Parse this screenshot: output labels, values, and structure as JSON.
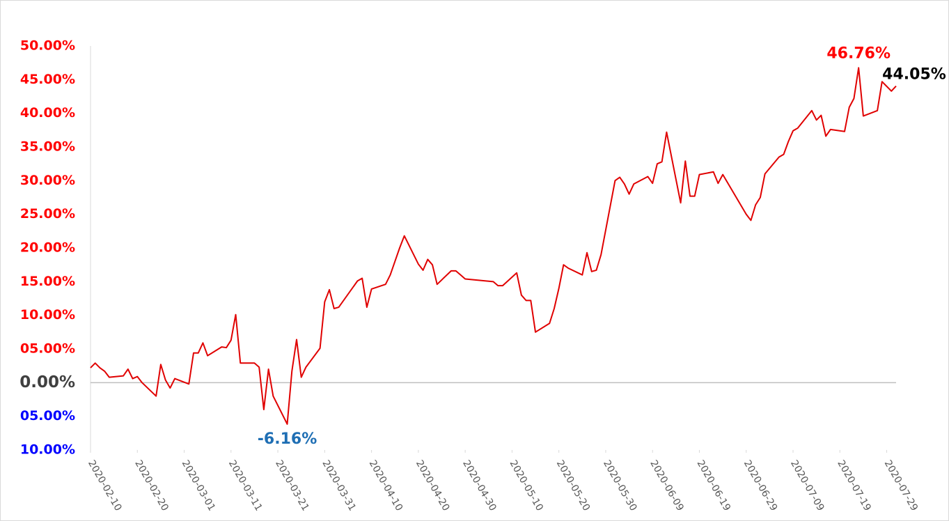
{
  "chart_data": {
    "type": "line",
    "x": [
      "2020-02-10",
      "2020-02-11",
      "2020-02-12",
      "2020-02-13",
      "2020-02-14",
      "2020-02-17",
      "2020-02-18",
      "2020-02-19",
      "2020-02-20",
      "2020-02-21",
      "2020-02-24",
      "2020-02-25",
      "2020-02-26",
      "2020-02-27",
      "2020-02-28",
      "2020-03-02",
      "2020-03-03",
      "2020-03-04",
      "2020-03-05",
      "2020-03-06",
      "2020-03-09",
      "2020-03-10",
      "2020-03-11",
      "2020-03-12",
      "2020-03-13",
      "2020-03-16",
      "2020-03-17",
      "2020-03-18",
      "2020-03-19",
      "2020-03-20",
      "2020-03-23",
      "2020-03-24",
      "2020-03-25",
      "2020-03-26",
      "2020-03-27",
      "2020-03-30",
      "2020-03-31",
      "2020-04-01",
      "2020-04-02",
      "2020-04-03",
      "2020-04-07",
      "2020-04-08",
      "2020-04-09",
      "2020-04-10",
      "2020-04-13",
      "2020-04-14",
      "2020-04-15",
      "2020-04-16",
      "2020-04-17",
      "2020-04-20",
      "2020-04-21",
      "2020-04-22",
      "2020-04-23",
      "2020-04-24",
      "2020-04-27",
      "2020-04-28",
      "2020-04-29",
      "2020-04-30",
      "2020-05-06",
      "2020-05-07",
      "2020-05-08",
      "2020-05-11",
      "2020-05-12",
      "2020-05-13",
      "2020-05-14",
      "2020-05-15",
      "2020-05-18",
      "2020-05-19",
      "2020-05-20",
      "2020-05-21",
      "2020-05-22",
      "2020-05-25",
      "2020-05-26",
      "2020-05-27",
      "2020-05-28",
      "2020-05-29",
      "2020-06-01",
      "2020-06-02",
      "2020-06-03",
      "2020-06-04",
      "2020-06-05",
      "2020-06-08",
      "2020-06-09",
      "2020-06-10",
      "2020-06-11",
      "2020-06-12",
      "2020-06-15",
      "2020-06-16",
      "2020-06-17",
      "2020-06-18",
      "2020-06-19",
      "2020-06-22",
      "2020-06-23",
      "2020-06-24",
      "2020-06-29",
      "2020-06-30",
      "2020-07-01",
      "2020-07-02",
      "2020-07-03",
      "2020-07-06",
      "2020-07-07",
      "2020-07-08",
      "2020-07-09",
      "2020-07-10",
      "2020-07-13",
      "2020-07-14",
      "2020-07-15",
      "2020-07-16",
      "2020-07-17",
      "2020-07-20",
      "2020-07-21",
      "2020-07-22",
      "2020-07-23",
      "2020-07-24",
      "2020-07-27",
      "2020-07-28",
      "2020-07-29",
      "2020-07-30",
      "2020-07-31"
    ],
    "series": [
      {
        "color": "#e00000",
        "values": [
          2.2,
          2.9,
          2.2,
          1.7,
          0.8,
          1.0,
          2.0,
          0.6,
          0.9,
          0.0,
          -2.0,
          2.7,
          0.4,
          -0.8,
          0.6,
          -0.2,
          4.4,
          4.4,
          5.9,
          4.0,
          5.3,
          5.2,
          6.3,
          10.1,
          2.9,
          2.9,
          2.3,
          -4.0,
          2.0,
          -2.0,
          -6.16,
          1.7,
          6.4,
          0.8,
          2.3,
          5.1,
          12.0,
          13.8,
          11.0,
          11.2,
          15.1,
          15.5,
          11.2,
          13.9,
          14.6,
          16.0,
          18.0,
          20.0,
          21.8,
          17.6,
          16.7,
          18.3,
          17.5,
          14.6,
          16.6,
          16.6,
          16.0,
          15.4,
          15.0,
          14.4,
          14.4,
          16.3,
          13.0,
          12.2,
          12.2,
          7.5,
          8.8,
          11.0,
          14.0,
          17.5,
          17.0,
          16.0,
          19.3,
          16.5,
          16.7,
          19.0,
          30.0,
          30.5,
          29.5,
          28.0,
          29.5,
          30.6,
          29.6,
          32.5,
          32.8,
          37.2,
          26.7,
          32.9,
          27.7,
          27.7,
          30.9,
          31.3,
          29.6,
          30.9,
          25.0,
          24.1,
          26.4,
          27.5,
          31.0,
          33.5,
          33.9,
          35.8,
          37.4,
          37.8,
          40.4,
          39.0,
          39.7,
          36.6,
          37.6,
          37.3,
          40.9,
          42.2,
          46.76,
          39.6,
          40.4,
          44.7,
          44.0,
          43.3,
          44.05
        ]
      }
    ],
    "xlim": [
      "2020-02-10",
      "2020-07-31"
    ],
    "xticks": [
      "2020-02-10",
      "2020-02-20",
      "2020-03-01",
      "2020-03-11",
      "2020-03-21",
      "2020-03-31",
      "2020-04-10",
      "2020-04-20",
      "2020-04-30",
      "2020-05-10",
      "2020-05-20",
      "2020-05-30",
      "2020-06-09",
      "2020-06-19",
      "2020-06-29",
      "2020-07-09",
      "2020-07-19",
      "2020-07-29"
    ],
    "ylim": [
      -10,
      50
    ],
    "yticks": [
      {
        "value": -10,
        "label": "10.00%"
      },
      {
        "value": -5,
        "label": "05.00%"
      },
      {
        "value": 0,
        "label": "0.00%"
      },
      {
        "value": 5,
        "label": "05.00%"
      },
      {
        "value": 10,
        "label": "10.00%"
      },
      {
        "value": 15,
        "label": "15.00%"
      },
      {
        "value": 20,
        "label": "20.00%"
      },
      {
        "value": 25,
        "label": "25.00%"
      },
      {
        "value": 30,
        "label": "30.00%"
      },
      {
        "value": 35,
        "label": "35.00%"
      },
      {
        "value": 40,
        "label": "40.00%"
      },
      {
        "value": 45,
        "label": "45.00%"
      },
      {
        "value": 50,
        "label": "50.00%"
      }
    ],
    "tick_colors": {
      "positive": "#ff0000",
      "zero": "#404040",
      "negative": "#0000ff"
    },
    "annotations": [
      {
        "x": "2020-07-23",
        "y": 46.76,
        "label": "46.76%",
        "color": "#ff0000",
        "position": "above"
      },
      {
        "x": "2020-07-31",
        "y": 44.05,
        "label": "44.05%",
        "color": "#000000",
        "position": "above-right"
      },
      {
        "x": "2020-03-23",
        "y": -6.16,
        "label": "-6.16%",
        "color": "#1f6fb4",
        "position": "below"
      }
    ]
  }
}
